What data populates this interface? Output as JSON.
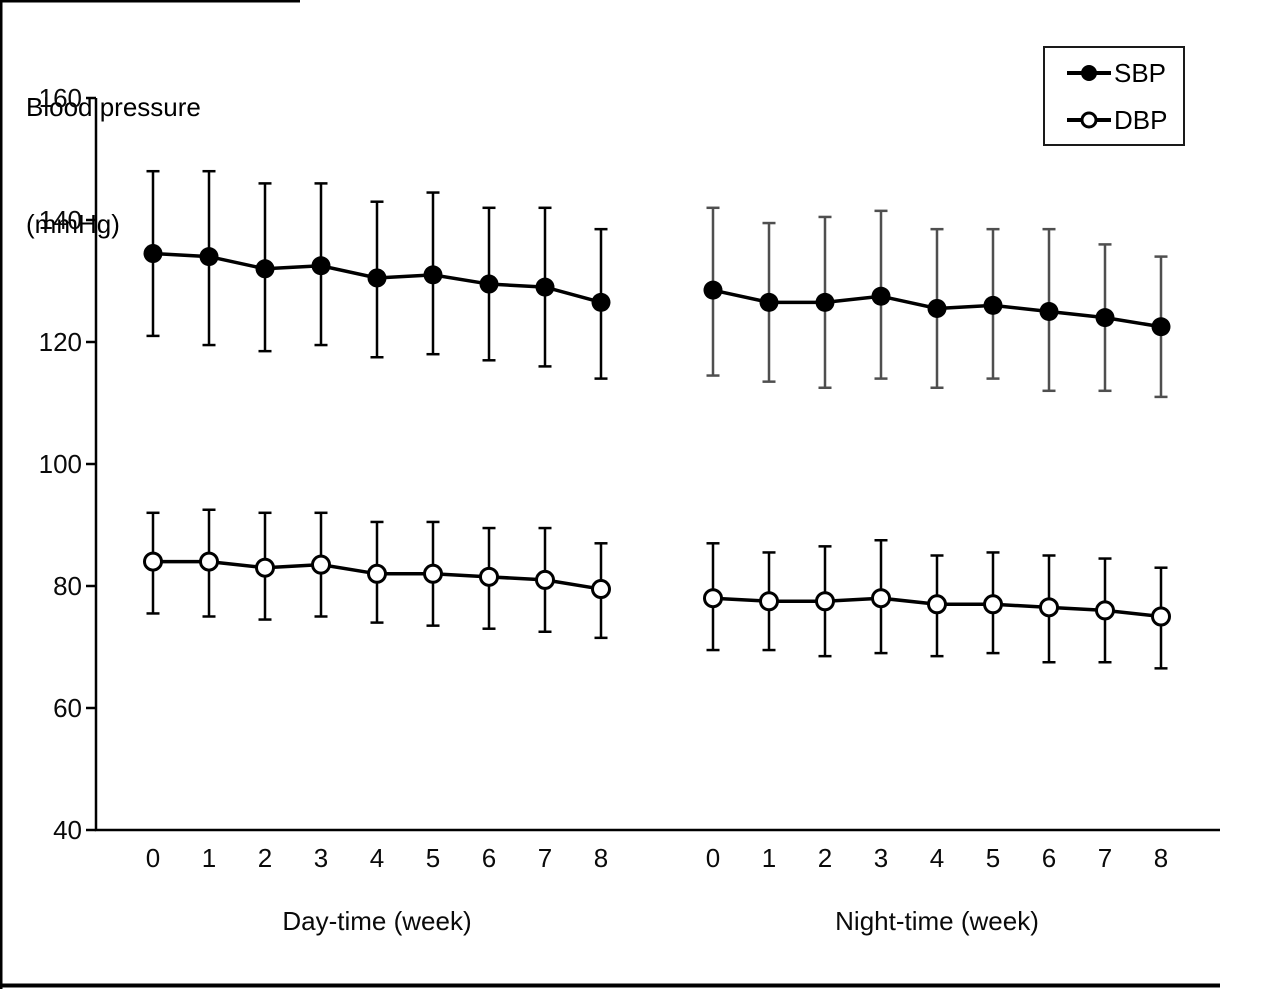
{
  "figure": {
    "background": "#ffffff",
    "ink_color": "#000000"
  },
  "chart_data": {
    "type": "line",
    "title": "",
    "ylabel_lines": [
      "Blood pressure",
      "(mmHg)"
    ],
    "ylabel": "Blood pressure (mmHg)",
    "ylim": [
      40,
      160
    ],
    "yticks": [
      160,
      140,
      120,
      100,
      80,
      60,
      40
    ],
    "weeks": [
      0,
      1,
      2,
      3,
      4,
      5,
      6,
      7,
      8
    ],
    "grid": false,
    "legend_position": "top-right",
    "legend_entries": [
      "SBP",
      "DBP"
    ],
    "panels": [
      {
        "label": "Day-time (week)",
        "series": [
          {
            "name": "SBP",
            "marker": "filled",
            "line_color": "#000000",
            "error_color": "#000000",
            "values": [
              134.5,
              134,
              132,
              132.5,
              130.5,
              131,
              129.5,
              129,
              126.5
            ],
            "upper": [
              148,
              148,
              146,
              146,
              143,
              144.5,
              142,
              142,
              138.5
            ],
            "lower": [
              121,
              119.5,
              118.5,
              119.5,
              117.5,
              118,
              117,
              116,
              114
            ]
          },
          {
            "name": "DBP",
            "marker": "open",
            "line_color": "#000000",
            "error_color": "#000000",
            "values": [
              84,
              84,
              83,
              83.5,
              82,
              82,
              81.5,
              81,
              79.5
            ],
            "upper": [
              92,
              92.5,
              92,
              92,
              90.5,
              90.5,
              89.5,
              89.5,
              87
            ],
            "lower": [
              75.5,
              75,
              74.5,
              75,
              74,
              73.5,
              73,
              72.5,
              71.5
            ]
          }
        ]
      },
      {
        "label": "Night-time (week)",
        "series": [
          {
            "name": "SBP",
            "marker": "filled",
            "line_color": "#000000",
            "error_color": "#4f4f4f",
            "values": [
              128.5,
              126.5,
              126.5,
              127.5,
              125.5,
              126,
              125,
              124,
              122.5
            ],
            "upper": [
              142,
              139.5,
              140.5,
              141.5,
              138.5,
              138.5,
              138.5,
              136,
              134
            ],
            "lower": [
              114.5,
              113.5,
              112.5,
              114,
              112.5,
              114,
              112,
              112,
              111
            ]
          },
          {
            "name": "DBP",
            "marker": "open",
            "line_color": "#000000",
            "error_color": "#000000",
            "values": [
              78,
              77.5,
              77.5,
              78,
              77,
              77,
              76.5,
              76,
              75
            ],
            "upper": [
              87,
              85.5,
              86.5,
              87.5,
              85,
              85.5,
              85,
              84.5,
              83
            ],
            "lower": [
              69.5,
              69.5,
              68.5,
              69,
              68.5,
              69,
              67.5,
              67.5,
              66.5
            ]
          }
        ]
      }
    ]
  }
}
